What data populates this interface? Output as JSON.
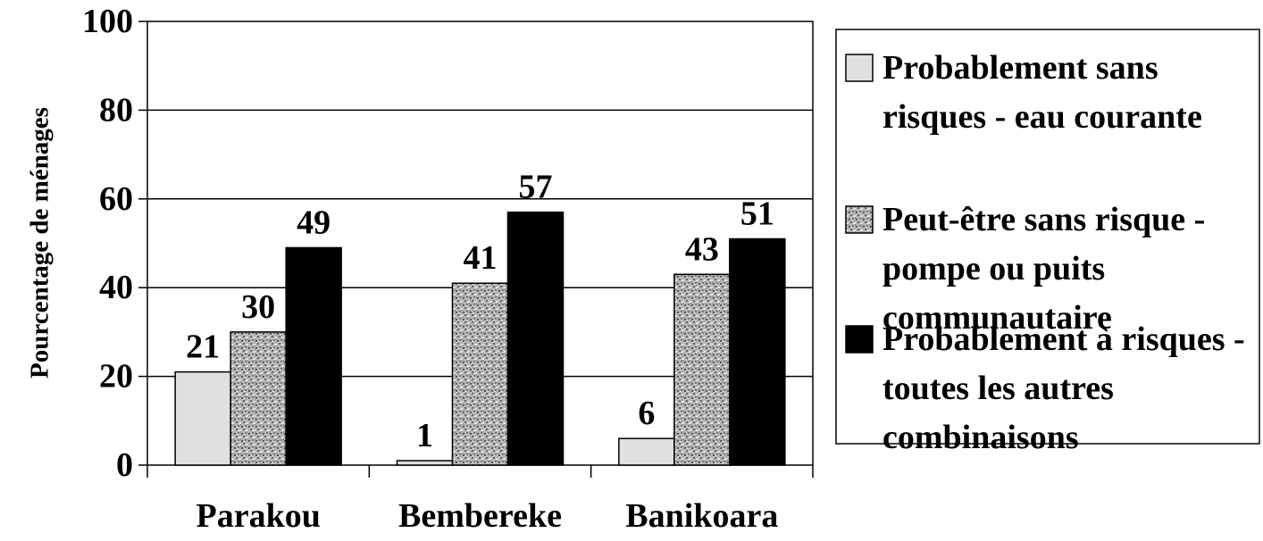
{
  "chart_data": {
    "type": "bar",
    "title": "",
    "xlabel": "",
    "ylabel": "Pourcentage de ménages",
    "ylim": [
      0,
      100
    ],
    "yticks": [
      0,
      20,
      40,
      60,
      80,
      100
    ],
    "grid": true,
    "legend_position": "right",
    "categories": [
      "Parakou",
      "Bembereke",
      "Banikoara"
    ],
    "series": [
      {
        "name_lines": [
          "Probablement sans",
          "risques - eau courante"
        ],
        "values": [
          21,
          1,
          6
        ],
        "fill": "#e0e0e0"
      },
      {
        "name_lines": [
          "Peut-être sans risque -",
          "pompe ou puits",
          "communautaire"
        ],
        "values": [
          30,
          41,
          43
        ],
        "fill": "pattern-speckle"
      },
      {
        "name_lines": [
          "Probablement à risques -",
          "toutes les autres",
          "combinaisons"
        ],
        "values": [
          49,
          57,
          51
        ],
        "fill": "#000000"
      }
    ]
  }
}
